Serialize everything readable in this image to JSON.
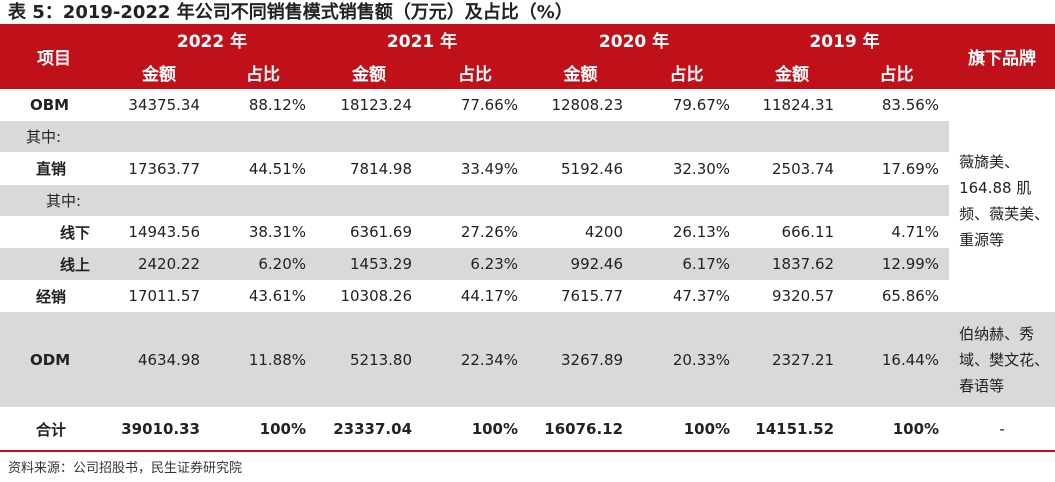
{
  "title": "表 5：2019-2022 年公司不同销售模式销售额（万元）及占比（%）",
  "header": {
    "item": "项目",
    "brands": "旗下品牌",
    "years": [
      "2022 年",
      "2021 年",
      "2020 年",
      "2019 年"
    ],
    "amount": "金额",
    "share": "占比"
  },
  "rows": [
    {
      "label": "OBM",
      "values": [
        "34375.34",
        "88.12%",
        "18123.24",
        "77.66%",
        "12808.23",
        "79.67%",
        "11824.31",
        "83.56%"
      ]
    },
    {
      "label": "其中:"
    },
    {
      "label": "直销",
      "values": [
        "17363.77",
        "44.51%",
        "7814.98",
        "33.49%",
        "5192.46",
        "32.30%",
        "2503.74",
        "17.69%"
      ]
    },
    {
      "label": "其中:"
    },
    {
      "label": "线下",
      "values": [
        "14943.56",
        "38.31%",
        "6361.69",
        "27.26%",
        "4200",
        "26.13%",
        "666.11",
        "4.71%"
      ]
    },
    {
      "label": "线上",
      "values": [
        "2420.22",
        "6.20%",
        "1453.29",
        "6.23%",
        "992.46",
        "6.17%",
        "1837.62",
        "12.99%"
      ]
    },
    {
      "label": "经销",
      "values": [
        "17011.57",
        "43.61%",
        "10308.26",
        "44.17%",
        "7615.77",
        "47.37%",
        "9320.57",
        "65.86%"
      ]
    },
    {
      "label": "ODM",
      "values": [
        "4634.98",
        "11.88%",
        "5213.80",
        "22.34%",
        "3267.89",
        "20.33%",
        "2327.21",
        "16.44%"
      ]
    },
    {
      "label": "合计",
      "values": [
        "39010.33",
        "100%",
        "23337.04",
        "100%",
        "16076.12",
        "100%",
        "14151.52",
        "100%"
      ]
    }
  ],
  "brands": {
    "obm": "薇旖美、164.88 肌频、薇芙美、重源等",
    "odm": "伯纳赫、秀域、樊文花、春语等",
    "total": "-"
  },
  "source": "资料来源：公司招股书，民生证券研究院"
}
